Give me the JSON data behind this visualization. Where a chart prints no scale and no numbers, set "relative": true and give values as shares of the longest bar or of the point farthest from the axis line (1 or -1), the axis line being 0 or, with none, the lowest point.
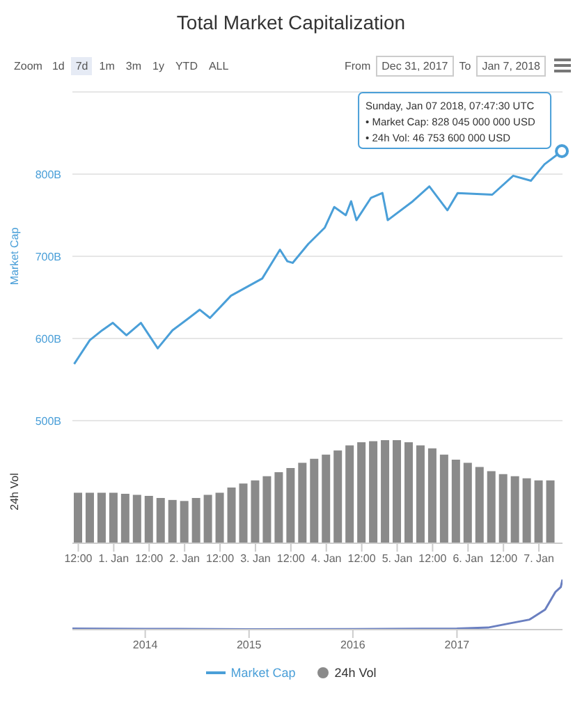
{
  "chart_data": [
    {
      "type": "line",
      "title": "Total Market Capitalization",
      "ylabel": "Market Cap",
      "x": [
        "2017-12-31T10:36",
        "2017-12-31T15:54",
        "2017-12-31T20:06",
        "2017-12-31T23:42",
        "2018-01-01T04:18",
        "2018-01-01T09:12",
        "2018-01-01T14:54",
        "2018-01-01T19:54",
        "2018-01-02T01:30",
        "2018-01-02T05:06",
        "2018-01-02T08:36",
        "2018-01-02T15:42",
        "2018-01-03T02:18",
        "2018-01-03T08:18",
        "2018-01-03T10:48",
        "2018-01-03T12:36",
        "2018-01-03T17:54",
        "2018-01-03T23:30",
        "2018-01-04T02:42",
        "2018-01-04T06:36",
        "2018-01-04T08:24",
        "2018-01-04T10:12",
        "2018-01-04T15:06",
        "2018-01-04T19:00",
        "2018-01-04T20:48",
        "2018-01-05T05:18",
        "2018-01-05T10:54",
        "2018-01-05T17:00",
        "2018-01-05T20:30",
        "2018-01-06T08:12",
        "2018-01-06T15:18",
        "2018-01-06T21:18",
        "2018-01-07T01:54",
        "2018-01-07T07:47"
      ],
      "series": [
        {
          "name": "Market Cap",
          "color": "#4a9fd8",
          "values": [
            569,
            598,
            610,
            619,
            604,
            619,
            588,
            610,
            625,
            635,
            625,
            652,
            673,
            708,
            694,
            692,
            715,
            735,
            760,
            750,
            767,
            744,
            771,
            777,
            744,
            767,
            785,
            756,
            777,
            775,
            798,
            792,
            812,
            828
          ]
        }
      ],
      "xlim": [
        "2017-12-31T10:00",
        "2018-01-07T08:00"
      ],
      "ylim": [
        500,
        900
      ],
      "yticks": [
        {
          "value": 500,
          "label": "500B"
        },
        {
          "value": 600,
          "label": "600B"
        },
        {
          "value": 700,
          "label": "700B"
        },
        {
          "value": 800,
          "label": "800B"
        }
      ],
      "grid": "y",
      "tick_labels": "y",
      "legend": "bottom",
      "marker": "none",
      "annotations": [
        "Zoom",
        "1d",
        "7d",
        "1m",
        "3m",
        "1y",
        "YTD",
        "ALL",
        "From",
        "Dec 31, 2017",
        "To",
        "Jan 7, 2018",
        {
          "text": "Sunday, Jan 07 2018, 07:47:30 UTC\n• Market Cap: 828 045 000 000 USD\n• 24h Vol: 46 753 600 000 USD",
          "x": "2018-01-07T07:47",
          "y": 828
        }
      ]
    },
    {
      "type": "bar",
      "ylabel": "24h Vol",
      "x": [
        "2017-12-31T12:00",
        "2017-12-31T16:00",
        "2017-12-31T20:00",
        "2018-01-01T00:00",
        "2018-01-01T04:00",
        "2018-01-01T08:00",
        "2018-01-01T12:00",
        "2018-01-01T16:00",
        "2018-01-01T20:00",
        "2018-01-02T00:00",
        "2018-01-02T04:00",
        "2018-01-02T08:00",
        "2018-01-02T12:00",
        "2018-01-02T16:00",
        "2018-01-02T20:00",
        "2018-01-03T00:00",
        "2018-01-03T04:00",
        "2018-01-03T08:00",
        "2018-01-03T12:00",
        "2018-01-03T16:00",
        "2018-01-03T20:00",
        "2018-01-04T00:00",
        "2018-01-04T04:00",
        "2018-01-04T08:00",
        "2018-01-04T12:00",
        "2018-01-04T16:00",
        "2018-01-04T20:00",
        "2018-01-05T00:00",
        "2018-01-05T04:00",
        "2018-01-05T08:00",
        "2018-01-05T12:00",
        "2018-01-05T16:00",
        "2018-01-05T20:00",
        "2018-01-06T00:00",
        "2018-01-06T04:00",
        "2018-01-06T08:00",
        "2018-01-06T12:00",
        "2018-01-06T16:00",
        "2018-01-06T20:00",
        "2018-01-07T00:00",
        "2018-01-07T04:00"
      ],
      "series": [
        {
          "name": "24h Vol",
          "color": "#8a8a8a",
          "values": [
            0.49,
            0.49,
            0.49,
            0.49,
            0.48,
            0.47,
            0.46,
            0.44,
            0.42,
            0.41,
            0.44,
            0.47,
            0.49,
            0.54,
            0.58,
            0.61,
            0.65,
            0.69,
            0.73,
            0.78,
            0.82,
            0.86,
            0.9,
            0.95,
            0.98,
            0.99,
            1,
            1,
            0.98,
            0.95,
            0.92,
            0.86,
            0.81,
            0.78,
            0.74,
            0.7,
            0.67,
            0.65,
            0.63,
            0.61,
            0.61
          ]
        }
      ],
      "relative": true,
      "xlim": [
        "2017-12-31T10:00",
        "2018-01-07T08:00"
      ],
      "xticks": [
        {
          "value": "2017-12-31T12:00",
          "label": "12:00"
        },
        {
          "value": "2018-01-01",
          "label": "1. Jan"
        },
        {
          "value": "2018-01-01T12:00",
          "label": "12:00"
        },
        {
          "value": "2018-01-02",
          "label": "2. Jan"
        },
        {
          "value": "2018-01-02T12:00",
          "label": "12:00"
        },
        {
          "value": "2018-01-03",
          "label": "3. Jan"
        },
        {
          "value": "2018-01-03T12:00",
          "label": "12:00"
        },
        {
          "value": "2018-01-04",
          "label": "4. Jan"
        },
        {
          "value": "2018-01-04T12:00",
          "label": "12:00"
        },
        {
          "value": "2018-01-05",
          "label": "5. Jan"
        },
        {
          "value": "2018-01-05T12:00",
          "label": "12:00"
        },
        {
          "value": "2018-01-06",
          "label": "6. Jan"
        },
        {
          "value": "2018-01-06T12:00",
          "label": "12:00"
        },
        {
          "value": "2018-01-07",
          "label": "7. Jan"
        }
      ],
      "legend": "bottom"
    },
    {
      "type": "line",
      "x": [
        "2013-04-20",
        "2014-01-01",
        "2015-01-01",
        "2016-01-01",
        "2017-01-01",
        "2017-04-20",
        "2017-07-01",
        "2017-09-13",
        "2017-11-07",
        "2017-12-13",
        "2018-01-01",
        "2018-01-07"
      ],
      "series": [
        {
          "color": "#6a7fc0",
          "values": [
            0.02,
            0.015,
            0.007,
            0.009,
            0.02,
            0.04,
            0.12,
            0.2,
            0.4,
            0.75,
            0.85,
            1
          ]
        }
      ],
      "relative": true,
      "xlim": [
        "2013-04-20",
        "2018-01-07"
      ],
      "xticks": [
        "2014",
        "2015",
        "2016",
        "2017"
      ],
      "marker": "none"
    }
  ]
}
